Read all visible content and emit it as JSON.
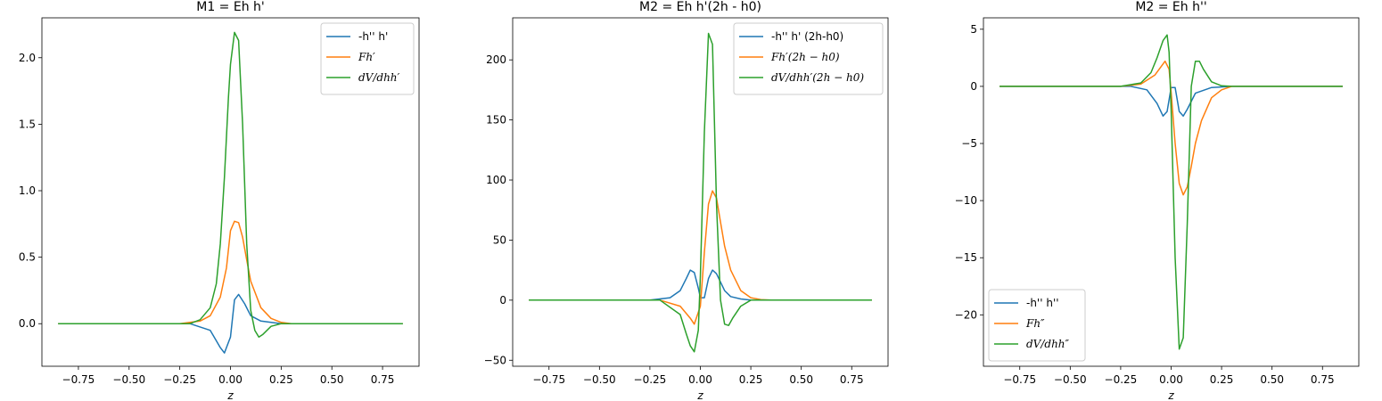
{
  "chart_data": [
    {
      "type": "line",
      "title": "M1 = Eh h'",
      "xlabel": "z",
      "ylabel": "",
      "xlim": [
        -0.93,
        0.93
      ],
      "ylim": [
        -0.32,
        2.3
      ],
      "xticks": [
        -0.75,
        -0.5,
        -0.25,
        0.0,
        0.25,
        0.5,
        0.75
      ],
      "xtick_labels": [
        "−0.75",
        "−0.50",
        "−0.25",
        "0.00",
        "0.25",
        "0.50",
        "0.75"
      ],
      "yticks": [
        0.0,
        0.5,
        1.0,
        1.5,
        2.0
      ],
      "ytick_labels": [
        "0.0",
        "0.5",
        "1.0",
        "1.5",
        "2.0"
      ],
      "legend_position": "top-right",
      "series": [
        {
          "name": "-h'' h'",
          "color": "#1f77b4",
          "x": [
            -0.85,
            -0.2,
            -0.1,
            -0.05,
            -0.03,
            0.0,
            0.02,
            0.04,
            0.07,
            0.1,
            0.15,
            0.25,
            0.85
          ],
          "y": [
            0,
            0,
            -0.05,
            -0.18,
            -0.22,
            -0.1,
            0.18,
            0.22,
            0.15,
            0.06,
            0.02,
            0,
            0
          ]
        },
        {
          "name": "Fh′",
          "color": "#ff7f0e",
          "x": [
            -0.85,
            -0.25,
            -0.15,
            -0.1,
            -0.05,
            -0.02,
            0.0,
            0.02,
            0.04,
            0.06,
            0.08,
            0.1,
            0.15,
            0.2,
            0.25,
            0.3,
            0.85
          ],
          "y": [
            0,
            0,
            0.02,
            0.06,
            0.2,
            0.42,
            0.7,
            0.77,
            0.76,
            0.65,
            0.48,
            0.32,
            0.12,
            0.04,
            0.01,
            0,
            0
          ]
        },
        {
          "name": "dV/dhh′",
          "color": "#2ca02c",
          "x": [
            -0.85,
            -0.2,
            -0.15,
            -0.1,
            -0.07,
            -0.05,
            -0.03,
            -0.01,
            0.0,
            0.02,
            0.04,
            0.06,
            0.08,
            0.1,
            0.12,
            0.14,
            0.16,
            0.2,
            0.25,
            0.85
          ],
          "y": [
            0,
            0,
            0.03,
            0.12,
            0.3,
            0.6,
            1.1,
            1.7,
            1.95,
            2.19,
            2.13,
            1.5,
            0.6,
            0.1,
            -0.05,
            -0.1,
            -0.08,
            -0.02,
            0,
            0
          ]
        }
      ]
    },
    {
      "type": "line",
      "title": "M2 = Eh h'(2h - h0)",
      "xlabel": "z",
      "ylabel": "",
      "xlim": [
        -0.93,
        0.93
      ],
      "ylim": [
        -55,
        235
      ],
      "xticks": [
        -0.75,
        -0.5,
        -0.25,
        0.0,
        0.25,
        0.5,
        0.75
      ],
      "xtick_labels": [
        "−0.75",
        "−0.50",
        "−0.25",
        "0.00",
        "0.25",
        "0.50",
        "0.75"
      ],
      "yticks": [
        -50,
        0,
        50,
        100,
        150,
        200
      ],
      "ytick_labels": [
        "−50",
        "0",
        "50",
        "100",
        "150",
        "200"
      ],
      "legend_position": "top-right",
      "series": [
        {
          "name": "-h'' h' (2h-h0)",
          "color": "#1f77b4",
          "x": [
            -0.85,
            -0.25,
            -0.15,
            -0.1,
            -0.07,
            -0.05,
            -0.03,
            -0.01,
            0.0,
            0.02,
            0.04,
            0.06,
            0.08,
            0.1,
            0.12,
            0.15,
            0.2,
            0.25,
            0.85
          ],
          "y": [
            0,
            0,
            2,
            8,
            18,
            25,
            23,
            10,
            2,
            2,
            18,
            25,
            22,
            15,
            8,
            3,
            1,
            0,
            0
          ]
        },
        {
          "name": "Fh′(2h − h0)",
          "color": "#ff7f0e",
          "x": [
            -0.85,
            -0.2,
            -0.1,
            -0.05,
            -0.03,
            0.0,
            0.02,
            0.04,
            0.06,
            0.08,
            0.1,
            0.12,
            0.15,
            0.2,
            0.25,
            0.3,
            0.35,
            0.85
          ],
          "y": [
            0,
            0,
            -5,
            -15,
            -20,
            -5,
            40,
            80,
            91,
            85,
            65,
            45,
            25,
            8,
            2,
            0.5,
            0,
            0
          ]
        },
        {
          "name": "dV/dhh′(2h − h0)",
          "color": "#2ca02c",
          "x": [
            -0.85,
            -0.2,
            -0.1,
            -0.07,
            -0.05,
            -0.03,
            -0.01,
            0.0,
            0.02,
            0.04,
            0.06,
            0.08,
            0.1,
            0.12,
            0.14,
            0.16,
            0.2,
            0.25,
            0.85
          ],
          "y": [
            0,
            0,
            -12,
            -28,
            -38,
            -43,
            -25,
            20,
            140,
            222,
            213,
            80,
            0,
            -20,
            -21,
            -15,
            -5,
            0,
            0
          ]
        }
      ]
    },
    {
      "type": "line",
      "title": "M2 = Eh h''",
      "xlabel": "z",
      "ylabel": "",
      "xlim": [
        -0.93,
        0.93
      ],
      "ylim": [
        -24.5,
        6
      ],
      "xticks": [
        -0.75,
        -0.5,
        -0.25,
        0.0,
        0.25,
        0.5,
        0.75
      ],
      "xtick_labels": [
        "−0.75",
        "−0.50",
        "−0.25",
        "0.00",
        "0.25",
        "0.50",
        "0.75"
      ],
      "yticks": [
        -20,
        -15,
        -10,
        -5,
        0,
        5
      ],
      "ytick_labels": [
        "−20",
        "−15",
        "−10",
        "−5",
        "0",
        "5"
      ],
      "legend_position": "bottom-left",
      "series": [
        {
          "name": "-h'' h''",
          "color": "#1f77b4",
          "x": [
            -0.85,
            -0.2,
            -0.12,
            -0.07,
            -0.04,
            -0.02,
            0.0,
            0.02,
            0.04,
            0.06,
            0.08,
            0.12,
            0.2,
            0.3,
            0.85
          ],
          "y": [
            0,
            0,
            -0.3,
            -1.5,
            -2.6,
            -2.2,
            -0.1,
            -0.1,
            -2.2,
            -2.6,
            -2.0,
            -0.6,
            -0.1,
            0,
            0
          ]
        },
        {
          "name": "Fh″",
          "color": "#ff7f0e",
          "x": [
            -0.85,
            -0.25,
            -0.15,
            -0.08,
            -0.03,
            -0.01,
            0.0,
            0.02,
            0.04,
            0.06,
            0.08,
            0.1,
            0.12,
            0.15,
            0.2,
            0.25,
            0.3,
            0.85
          ],
          "y": [
            0,
            0,
            0.2,
            1.0,
            2.2,
            1.5,
            -0.5,
            -5,
            -8.5,
            -9.5,
            -8.8,
            -7,
            -5,
            -3,
            -1,
            -0.3,
            0,
            0
          ]
        },
        {
          "name": "dV/dhh″",
          "color": "#2ca02c",
          "x": [
            -0.85,
            -0.25,
            -0.15,
            -0.1,
            -0.07,
            -0.04,
            -0.02,
            -0.01,
            0.0,
            0.02,
            0.04,
            0.06,
            0.08,
            0.1,
            0.12,
            0.14,
            0.16,
            0.2,
            0.25,
            0.3,
            0.85
          ],
          "y": [
            0,
            0,
            0.3,
            1.2,
            2.5,
            4.0,
            4.5,
            3.0,
            -2,
            -15,
            -23,
            -22,
            -12,
            0,
            2.2,
            2.2,
            1.5,
            0.4,
            0.05,
            0,
            0
          ]
        }
      ]
    }
  ]
}
